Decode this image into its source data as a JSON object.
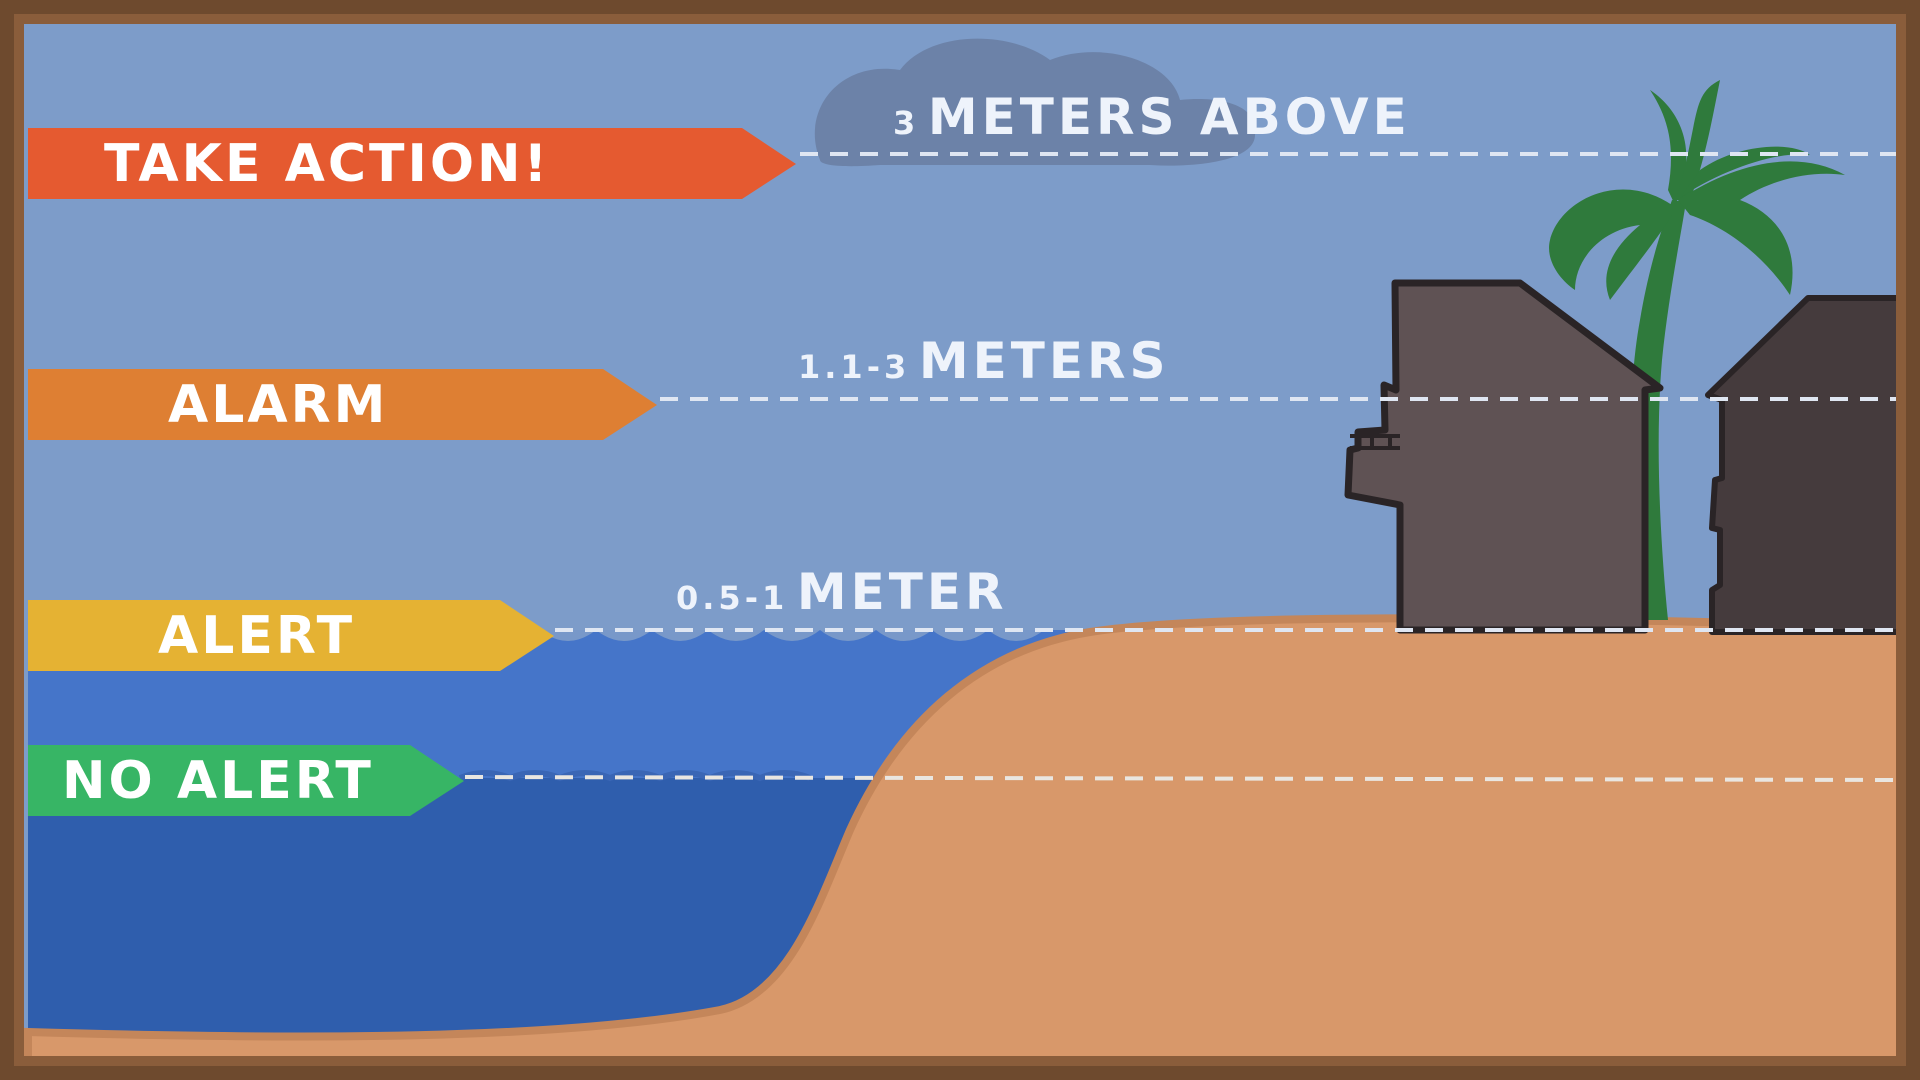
{
  "levels": [
    {
      "id": "take-action",
      "flag": "TAKE ACTION!",
      "num": "3",
      "unit": "METERS ABOVE",
      "color": "#e55a30"
    },
    {
      "id": "alarm",
      "flag": "ALARM",
      "num": "1.1-3",
      "unit": "METERS",
      "color": "#de7f33"
    },
    {
      "id": "alert",
      "flag": "ALERT",
      "num": "0.5-1",
      "unit": "METER",
      "color": "#e5b233"
    },
    {
      "id": "no-alert",
      "flag": "NO ALERT",
      "num": "",
      "unit": "",
      "color": "#37b565"
    }
  ],
  "colors": {
    "sky": "#7d9cc9",
    "sea_upper": "#4575c9",
    "sea_lower": "#2f5ead",
    "sand": "#d8986a",
    "sand_edge": "#c4865a",
    "house_front": "#5f5254",
    "house_back": "#453b3d",
    "palm": "#2f7a3c",
    "frame": "#6e4a2e"
  }
}
